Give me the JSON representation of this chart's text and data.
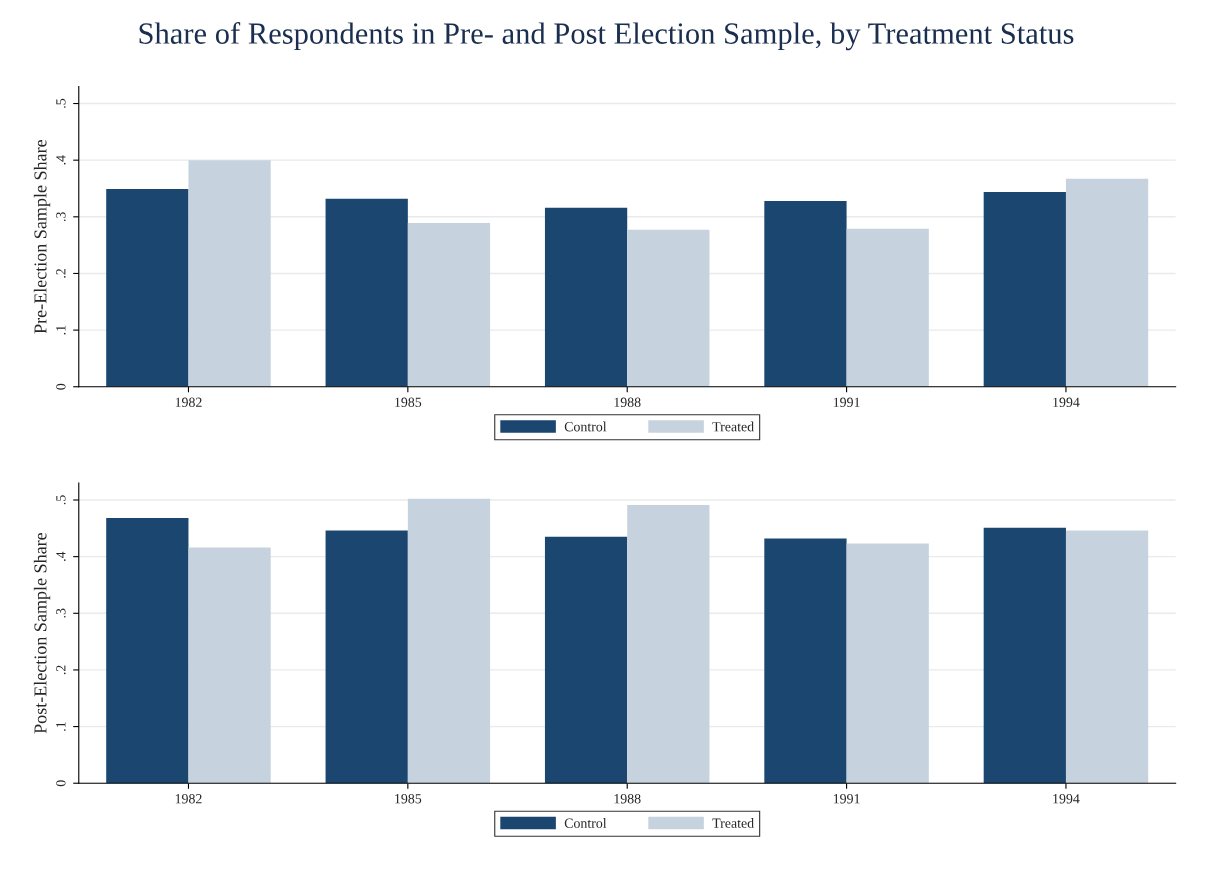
{
  "chart_data": [
    {
      "type": "bar",
      "title": "Share of Respondents in Pre- and Post Election Sample, by Treatment Status",
      "ylabel": "Pre-Election Sample Share",
      "categories": [
        "1982",
        "1985",
        "1988",
        "1991",
        "1994"
      ],
      "series": [
        {
          "name": "Control",
          "color": "#1a4670",
          "values": [
            0.349,
            0.332,
            0.316,
            0.328,
            0.344
          ]
        },
        {
          "name": "Treated",
          "color": "#c6d3df",
          "values": [
            0.4,
            0.289,
            0.277,
            0.279,
            0.367
          ]
        }
      ],
      "ylim": [
        0,
        0.53
      ],
      "yticks": [
        0,
        {
          "value": 0.1,
          "label": ".1"
        },
        {
          "value": 0.2,
          "label": ".2"
        },
        {
          "value": 0.3,
          "label": ".3"
        },
        {
          "value": 0.4,
          "label": ".4"
        },
        {
          "value": 0.5,
          "label": ".5"
        }
      ],
      "grid": "y",
      "legend": "bottom"
    },
    {
      "type": "bar",
      "ylabel": "Post-Election Sample Share",
      "categories": [
        "1982",
        "1985",
        "1988",
        "1991",
        "1994"
      ],
      "series": [
        {
          "name": "Control",
          "color": "#1a4670",
          "values": [
            0.468,
            0.446,
            0.435,
            0.432,
            0.451
          ]
        },
        {
          "name": "Treated",
          "color": "#c6d3df",
          "values": [
            0.416,
            0.502,
            0.491,
            0.423,
            0.446
          ]
        }
      ],
      "ylim": [
        0,
        0.53
      ],
      "yticks": [
        0,
        {
          "value": 0.1,
          "label": ".1"
        },
        {
          "value": 0.2,
          "label": ".2"
        },
        {
          "value": 0.3,
          "label": ".3"
        },
        {
          "value": 0.4,
          "label": ".4"
        },
        {
          "value": 0.5,
          "label": ".5"
        }
      ],
      "grid": "y",
      "legend": "bottom"
    }
  ]
}
